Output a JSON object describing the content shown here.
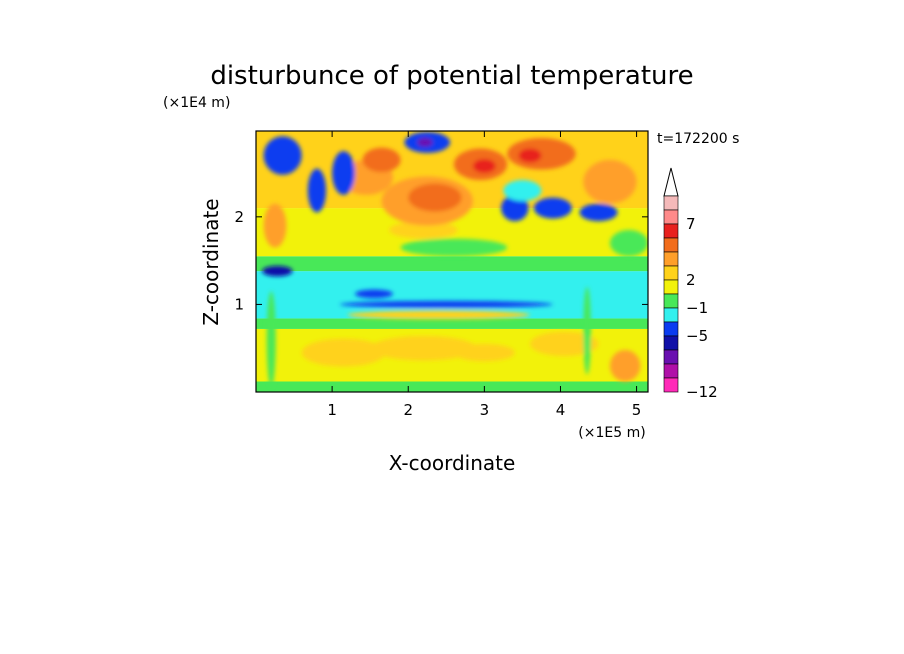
{
  "chart_data": {
    "type": "heatmap",
    "title": "disturbunce of potential temperature",
    "xlabel": "X-coordinate",
    "ylabel": "Z-coordinate",
    "x_unit": "(×1E5 m)",
    "y_unit": "(×1E4 m)",
    "time_label": "t=172200 s",
    "xlim": [
      0,
      5.15
    ],
    "ylim": [
      0,
      2.98
    ],
    "x_ticks": [
      "1",
      "2",
      "3",
      "4",
      "5"
    ],
    "y_ticks": [
      "1",
      "2"
    ],
    "x_tick_values": [
      1,
      2,
      3,
      4,
      5
    ],
    "y_tick_values": [
      1,
      2
    ],
    "colorbar": {
      "extend_top": true,
      "levels_labeled": [
        "7",
        "2",
        "−1",
        "−5",
        "−12"
      ],
      "bins": [
        {
          "color": "#f4b9b9"
        },
        {
          "color": "#ff8a8a"
        },
        {
          "color": "#e8201e"
        },
        {
          "color": "#f26d1c"
        },
        {
          "color": "#ff9f2a"
        },
        {
          "color": "#ffd21a"
        },
        {
          "color": "#f2f20a"
        },
        {
          "color": "#48e858"
        },
        {
          "color": "#33f0ee"
        },
        {
          "color": "#0a3cf0"
        },
        {
          "color": "#1010a8"
        },
        {
          "color": "#6a10b0"
        },
        {
          "color": "#b010a8"
        },
        {
          "color": "#ff2ab8"
        }
      ]
    },
    "field_bands": [
      {
        "z_from": 0.0,
        "z_to": 0.12,
        "color": "#48e858"
      },
      {
        "z_from": 0.12,
        "z_to": 0.72,
        "color": "#f2f20a"
      },
      {
        "z_from": 0.72,
        "z_to": 0.84,
        "color": "#48e858"
      },
      {
        "z_from": 0.84,
        "z_to": 1.38,
        "color": "#33f0ee"
      },
      {
        "z_from": 1.38,
        "z_to": 1.55,
        "color": "#48e858"
      },
      {
        "z_from": 1.55,
        "z_to": 2.1,
        "color": "#f2f20a"
      },
      {
        "z_from": 2.1,
        "z_to": 2.98,
        "color": "#ffd21a"
      }
    ],
    "features": [
      {
        "x": 1.15,
        "z": 0.45,
        "rx": 0.55,
        "rz": 0.16,
        "color": "#ffd21a"
      },
      {
        "x": 2.2,
        "z": 0.5,
        "rx": 0.7,
        "rz": 0.14,
        "color": "#ffd21a"
      },
      {
        "x": 3.0,
        "z": 0.45,
        "rx": 0.4,
        "rz": 0.1,
        "color": "#ffd21a"
      },
      {
        "x": 4.05,
        "z": 0.55,
        "rx": 0.45,
        "rz": 0.14,
        "color": "#ffd21a"
      },
      {
        "x": 2.4,
        "z": 0.88,
        "rx": 1.2,
        "rz": 0.05,
        "color": "#ffd21a"
      },
      {
        "x": 2.5,
        "z": 1.0,
        "rx": 1.4,
        "rz": 0.04,
        "color": "#0a3cf0"
      },
      {
        "x": 1.55,
        "z": 1.12,
        "rx": 0.25,
        "rz": 0.05,
        "color": "#0a3cf0"
      },
      {
        "x": 0.28,
        "z": 1.38,
        "rx": 0.2,
        "rz": 0.06,
        "color": "#1010a8"
      },
      {
        "x": 2.6,
        "z": 1.65,
        "rx": 0.7,
        "rz": 0.1,
        "color": "#48e858"
      },
      {
        "x": 2.2,
        "z": 1.85,
        "rx": 0.45,
        "rz": 0.1,
        "color": "#ffd21a"
      },
      {
        "x": 2.25,
        "z": 2.18,
        "rx": 0.6,
        "rz": 0.28,
        "color": "#ff9f2a"
      },
      {
        "x": 2.35,
        "z": 2.22,
        "rx": 0.35,
        "rz": 0.16,
        "color": "#f26d1c"
      },
      {
        "x": 1.45,
        "z": 2.45,
        "rx": 0.35,
        "rz": 0.2,
        "color": "#ff9f2a"
      },
      {
        "x": 1.65,
        "z": 2.65,
        "rx": 0.25,
        "rz": 0.14,
        "color": "#f26d1c"
      },
      {
        "x": 2.95,
        "z": 2.6,
        "rx": 0.35,
        "rz": 0.18,
        "color": "#f26d1c"
      },
      {
        "x": 3.0,
        "z": 2.58,
        "rx": 0.15,
        "rz": 0.08,
        "color": "#e8201e"
      },
      {
        "x": 3.75,
        "z": 2.72,
        "rx": 0.45,
        "rz": 0.18,
        "color": "#f26d1c"
      },
      {
        "x": 3.6,
        "z": 2.7,
        "rx": 0.15,
        "rz": 0.08,
        "color": "#e8201e"
      },
      {
        "x": 2.25,
        "z": 2.85,
        "rx": 0.3,
        "rz": 0.12,
        "color": "#0a3cf0"
      },
      {
        "x": 2.22,
        "z": 2.85,
        "rx": 0.1,
        "rz": 0.05,
        "color": "#6a10b0"
      },
      {
        "x": 1.15,
        "z": 2.5,
        "rx": 0.15,
        "rz": 0.25,
        "color": "#0a3cf0"
      },
      {
        "x": 0.8,
        "z": 2.3,
        "rx": 0.12,
        "rz": 0.25,
        "color": "#0a3cf0"
      },
      {
        "x": 0.35,
        "z": 2.7,
        "rx": 0.25,
        "rz": 0.22,
        "color": "#0a3cf0"
      },
      {
        "x": 3.4,
        "z": 2.1,
        "rx": 0.18,
        "rz": 0.15,
        "color": "#0a3cf0"
      },
      {
        "x": 3.9,
        "z": 2.1,
        "rx": 0.25,
        "rz": 0.12,
        "color": "#0a3cf0"
      },
      {
        "x": 3.5,
        "z": 2.3,
        "rx": 0.25,
        "rz": 0.12,
        "color": "#33f0ee"
      },
      {
        "x": 4.5,
        "z": 2.05,
        "rx": 0.25,
        "rz": 0.1,
        "color": "#0a3cf0"
      },
      {
        "x": 4.65,
        "z": 2.4,
        "rx": 0.35,
        "rz": 0.25,
        "color": "#ff9f2a"
      },
      {
        "x": 4.9,
        "z": 1.7,
        "rx": 0.25,
        "rz": 0.15,
        "color": "#48e858"
      },
      {
        "x": 0.25,
        "z": 1.9,
        "rx": 0.15,
        "rz": 0.25,
        "color": "#ff9f2a"
      },
      {
        "x": 4.35,
        "z": 0.7,
        "rx": 0.05,
        "rz": 0.5,
        "color": "#48e858"
      },
      {
        "x": 0.2,
        "z": 0.6,
        "rx": 0.06,
        "rz": 0.55,
        "color": "#48e858"
      },
      {
        "x": 4.85,
        "z": 0.3,
        "rx": 0.2,
        "rz": 0.18,
        "color": "#ff9f2a"
      }
    ]
  }
}
